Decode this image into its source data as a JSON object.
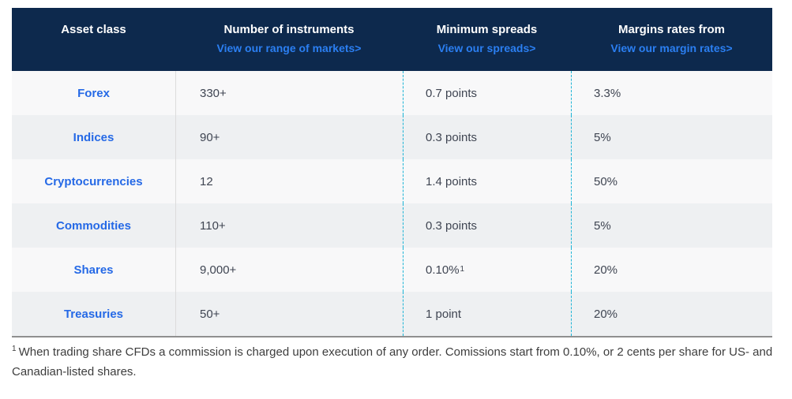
{
  "table": {
    "columns": [
      {
        "label": "Asset class",
        "link": ""
      },
      {
        "label": "Number of instruments",
        "link": "View our range of markets>"
      },
      {
        "label": "Minimum spreads",
        "link": "View our spreads>"
      },
      {
        "label": "Margins rates from",
        "link": "View our margin rates>"
      }
    ],
    "rows": [
      {
        "asset": "Forex",
        "instruments": "330+",
        "spread": "0.7 points",
        "spread_sup": "",
        "margin": "3.3%"
      },
      {
        "asset": "Indices",
        "instruments": "90+",
        "spread": "0.3 points",
        "spread_sup": "",
        "margin": "5%"
      },
      {
        "asset": "Cryptocurrencies",
        "instruments": "12",
        "spread": "1.4 points",
        "spread_sup": "",
        "margin": "50%"
      },
      {
        "asset": "Commodities",
        "instruments": "110+",
        "spread": "0.3 points",
        "spread_sup": "",
        "margin": "5%"
      },
      {
        "asset": "Shares",
        "instruments": "9,000+",
        "spread": "0.10%",
        "spread_sup": "1",
        "margin": "20%"
      },
      {
        "asset": "Treasuries",
        "instruments": "50+",
        "spread": "1 point",
        "spread_sup": "",
        "margin": "20%"
      }
    ]
  },
  "footnote": {
    "sup": "1",
    "text": "When trading share CFDs a commission is charged upon execution of any order. Comissions start from 0.10%, or 2 cents per share for US- and Canadian-listed shares."
  },
  "colors": {
    "header_bg": "#0d294d",
    "header_link_blue": "#2b7ff2",
    "body_link_blue": "#2569e6",
    "row_light": "#f8f8f9",
    "row_gray": "#eef0f2",
    "dashed_divider_cyan": "#1cb4d6",
    "solid_divider_gray": "#dcdcdc",
    "table_bottom_border": "#8f8f8f"
  }
}
